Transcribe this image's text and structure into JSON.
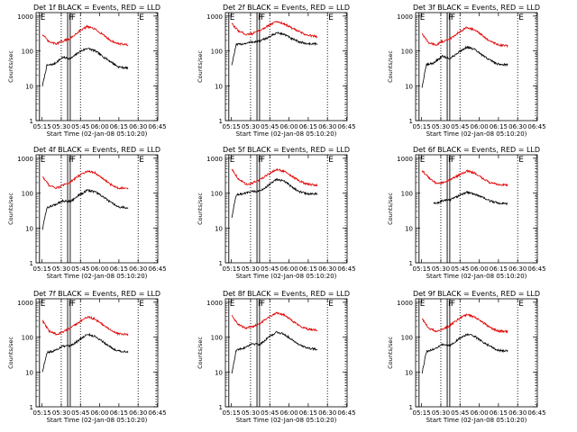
{
  "shared": {
    "xlabel": "Start Time (02-Jan-08 05:10:20)",
    "ylabel": "Counts/sec",
    "x_ticks": [
      "05:15",
      "05:30",
      "05:45",
      "06:00",
      "06:15",
      "06:30",
      "06:45"
    ],
    "y_ticks": [
      "1",
      "10",
      "100",
      "1000"
    ],
    "x_range_minutes_after_05_10_20": [
      0,
      95
    ],
    "y_range_log10": [
      0,
      3.1
    ],
    "y_scale": "log",
    "legend": "title",
    "black_series": "Events",
    "red_series": "LLD",
    "black_color": "#000000",
    "red_color": "#e00000",
    "markers": [
      {
        "label": "E",
        "time": "05:13",
        "style": "solid"
      },
      {
        "label": "F",
        "time": "05:35",
        "style": "solid"
      },
      {
        "label": "F",
        "time": "05:37",
        "style": "solid"
      },
      {
        "label": "",
        "time": "05:30",
        "style": "dotted"
      },
      {
        "label": "",
        "time": "05:45",
        "style": "dotted"
      },
      {
        "label": "E",
        "time": "06:30",
        "style": "dotted"
      },
      {
        "label": "",
        "time": "06:44",
        "style": "dotted"
      }
    ]
  },
  "chart_data": [
    {
      "title": "Det 1f BLACK = Events, RED = LLD",
      "type": "line",
      "series": [
        {
          "name": "Events",
          "color": "#000000",
          "x": [
            5.0,
            8.4,
            14.0,
            20.7,
            27.0,
            34.0,
            40.0,
            46.0,
            52.0,
            58.0,
            64.0,
            72.0
          ],
          "y": [
            10,
            38,
            42,
            65,
            60,
            95,
            120,
            100,
            70,
            50,
            35,
            32
          ]
        },
        {
          "name": "LLD",
          "color": "#e00000",
          "x": [
            5.0,
            10.0,
            16.0,
            20.7,
            27.0,
            34.0,
            40.0,
            46.0,
            52.0,
            58.0,
            64.0,
            72.0
          ],
          "y": [
            300,
            180,
            160,
            190,
            230,
            380,
            500,
            420,
            300,
            200,
            160,
            150
          ]
        }
      ]
    },
    {
      "title": "Det 2f BLACK = Events, RED = LLD",
      "type": "line",
      "series": [
        {
          "name": "Events",
          "color": "#000000",
          "x": [
            5.0,
            8.4,
            14.0,
            20.7,
            27.0,
            34.0,
            40.0,
            46.0,
            52.0,
            58.0,
            64.0,
            72.0
          ],
          "y": [
            40,
            150,
            160,
            180,
            190,
            250,
            330,
            300,
            220,
            180,
            160,
            160
          ]
        },
        {
          "name": "LLD",
          "color": "#e00000",
          "x": [
            5.0,
            10.0,
            16.0,
            20.7,
            27.0,
            34.0,
            40.0,
            46.0,
            52.0,
            58.0,
            64.0,
            72.0
          ],
          "y": [
            600,
            380,
            300,
            310,
            380,
            550,
            700,
            600,
            450,
            350,
            280,
            260
          ]
        }
      ]
    },
    {
      "title": "Det 3f BLACK = Events, RED = LLD",
      "type": "line",
      "series": [
        {
          "name": "Events",
          "color": "#000000",
          "x": [
            5.0,
            8.4,
            14.0,
            20.7,
            27.0,
            34.0,
            40.0,
            46.0,
            52.0,
            58.0,
            64.0,
            72.0
          ],
          "y": [
            9,
            40,
            45,
            70,
            60,
            95,
            130,
            110,
            75,
            55,
            42,
            40
          ]
        },
        {
          "name": "LLD",
          "color": "#e00000",
          "x": [
            5.0,
            10.0,
            16.0,
            20.7,
            27.0,
            34.0,
            40.0,
            46.0,
            52.0,
            58.0,
            64.0,
            72.0
          ],
          "y": [
            320,
            170,
            150,
            185,
            220,
            350,
            480,
            400,
            280,
            190,
            150,
            140
          ]
        }
      ]
    },
    {
      "title": "Det 4f BLACK = Events, RED = LLD",
      "type": "line",
      "series": [
        {
          "name": "Events",
          "color": "#000000",
          "x": [
            5.0,
            8.4,
            14.0,
            20.7,
            27.0,
            34.0,
            40.0,
            46.0,
            52.0,
            58.0,
            64.0,
            72.0
          ],
          "y": [
            9,
            38,
            45,
            60,
            58,
            90,
            120,
            110,
            80,
            55,
            40,
            38
          ]
        },
        {
          "name": "LLD",
          "color": "#e00000",
          "x": [
            5.0,
            10.0,
            16.0,
            20.7,
            27.0,
            34.0,
            40.0,
            46.0,
            52.0,
            58.0,
            64.0,
            72.0
          ],
          "y": [
            300,
            170,
            140,
            165,
            210,
            330,
            430,
            380,
            260,
            180,
            140,
            140
          ]
        }
      ]
    },
    {
      "title": "Det 5f BLACK = Events, RED = LLD",
      "type": "line",
      "series": [
        {
          "name": "Events",
          "color": "#000000",
          "x": [
            5.0,
            8.4,
            14.0,
            20.7,
            27.0,
            34.0,
            40.0,
            46.0,
            52.0,
            58.0,
            64.0,
            72.0
          ],
          "y": [
            20,
            90,
            95,
            110,
            115,
            170,
            250,
            220,
            150,
            110,
            95,
            95
          ]
        },
        {
          "name": "LLD",
          "color": "#e00000",
          "x": [
            5.0,
            10.0,
            16.0,
            20.7,
            27.0,
            34.0,
            40.0,
            46.0,
            52.0,
            58.0,
            64.0,
            72.0
          ],
          "y": [
            500,
            260,
            180,
            190,
            240,
            360,
            480,
            420,
            300,
            220,
            180,
            170
          ]
        }
      ]
    },
    {
      "title": "Det 6f BLACK = Events, RED = LLD",
      "type": "line",
      "series": [
        {
          "name": "Events",
          "color": "#000000",
          "x": [
            14.0,
            17.0,
            20.7,
            27.0,
            34.0,
            40.0,
            46.0,
            52.0,
            58.0,
            64.0,
            72.0
          ],
          "y": [
            50,
            52,
            60,
            65,
            85,
            105,
            95,
            75,
            60,
            52,
            50
          ]
        },
        {
          "name": "LLD",
          "color": "#e00000",
          "x": [
            5.0,
            10.0,
            16.0,
            20.7,
            27.0,
            34.0,
            40.0,
            46.0,
            52.0,
            58.0,
            64.0,
            72.0
          ],
          "y": [
            450,
            280,
            190,
            200,
            240,
            330,
            430,
            380,
            270,
            200,
            175,
            170
          ]
        }
      ]
    },
    {
      "title": "Det 7f BLACK = Events, RED = LLD",
      "type": "line",
      "series": [
        {
          "name": "Events",
          "color": "#000000",
          "x": [
            5.0,
            8.4,
            14.0,
            20.7,
            27.0,
            34.0,
            40.0,
            46.0,
            52.0,
            58.0,
            64.0,
            72.0
          ],
          "y": [
            10,
            36,
            40,
            55,
            55,
            85,
            120,
            105,
            75,
            52,
            40,
            38
          ]
        },
        {
          "name": "LLD",
          "color": "#e00000",
          "x": [
            5.0,
            10.0,
            16.0,
            20.7,
            27.0,
            34.0,
            40.0,
            46.0,
            52.0,
            58.0,
            64.0,
            72.0
          ],
          "y": [
            300,
            150,
            120,
            140,
            180,
            280,
            380,
            330,
            230,
            160,
            125,
            120
          ]
        }
      ]
    },
    {
      "title": "Det 8f BLACK = Events, RED = LLD",
      "type": "line",
      "series": [
        {
          "name": "Events",
          "color": "#000000",
          "x": [
            5.0,
            8.4,
            14.0,
            20.7,
            27.0,
            34.0,
            40.0,
            46.0,
            52.0,
            58.0,
            64.0,
            72.0
          ],
          "y": [
            9,
            42,
            48,
            65,
            62,
            100,
            140,
            120,
            85,
            60,
            48,
            45
          ]
        },
        {
          "name": "LLD",
          "color": "#e00000",
          "x": [
            5.0,
            10.0,
            16.0,
            20.7,
            27.0,
            34.0,
            40.0,
            46.0,
            52.0,
            58.0,
            64.0,
            72.0
          ],
          "y": [
            420,
            230,
            180,
            200,
            250,
            380,
            500,
            430,
            300,
            210,
            170,
            160
          ]
        }
      ]
    },
    {
      "title": "Det 9f BLACK = Events, RED = LLD",
      "type": "line",
      "series": [
        {
          "name": "Events",
          "color": "#000000",
          "x": [
            5.0,
            8.4,
            14.0,
            20.7,
            27.0,
            34.0,
            40.0,
            46.0,
            52.0,
            58.0,
            64.0,
            72.0
          ],
          "y": [
            9,
            38,
            45,
            60,
            58,
            90,
            120,
            105,
            75,
            55,
            42,
            40
          ]
        },
        {
          "name": "LLD",
          "color": "#e00000",
          "x": [
            5.0,
            10.0,
            16.0,
            20.7,
            27.0,
            34.0,
            40.0,
            46.0,
            52.0,
            58.0,
            64.0,
            72.0
          ],
          "y": [
            340,
            180,
            150,
            170,
            220,
            340,
            440,
            380,
            270,
            190,
            150,
            145
          ]
        }
      ]
    }
  ]
}
